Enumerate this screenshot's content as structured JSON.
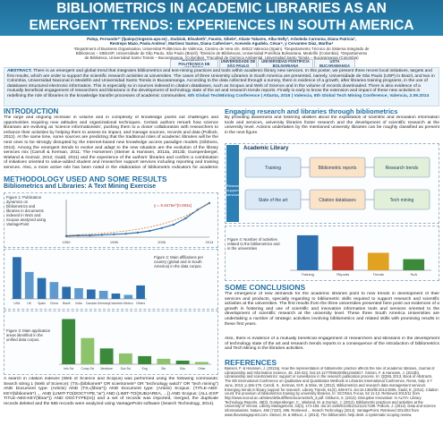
{
  "poster": {
    "title_line1": "BIBLIOMETRICS IN ACADEMIC LIBRARIES AS AN",
    "title_line2": "EMERGENT TRENDS: EXPERIENCES IN SOUTH AMERICA",
    "authors_line1": "Palop, Fernando*¹ (fpalop@ingenio.upv.es) , Dudziak, Elisabeth², Fausto, Sibele², Alzate Tabares, Alba Nelly³, Arboleda Carmona, Diana Patricia³,",
    "authors_line2": "Restrepo Mazo, Paola Andrea³, Martinez Santos, Diana Catherine⁴, Acevedo Agudelo, César⁴, y Cervantes Díaz, Martha⁴",
    "affil_line1": "¹Department of Business Organisation, Universitat Politècnica de València, Camino de Vera s/n, 46022 Valencia (Spain). ²Departamento Técnico do Sistema Integrado de",
    "affil_line2": "Bibliotecas – SIBiUSP, Universidade de São Paulo, São Paulo (Brazil). ³División de Bibliotecas, Universidad Pontificia Bolivariana, Medellín (Colombia). ⁴Departamento",
    "affil_line3": "de Biblioteca, Universidad Santo Tomás – Bucaramanga, (Colombia). *Facultad de Química Ambiental, Universidad Santo Tomás – Bucaramanga (Colombia)",
    "logos": [
      "UNIVERSITAT POLITÈCNICA DE VALÈNCIA",
      "UNIVERSIDADE DE SÃO PAULO",
      "UNIVERSIDAD PONTIFICIA BOLIVARIANA",
      "USTA BUCARAMANGA"
    ]
  },
  "abstract": {
    "label": "ABSTRACT.",
    "text": "There is an emergent and global trend that integrates bibliometrics and text-mining practices and tools within academic library new services. In this poster, we present three recent local initiatives, targets and first results, which are order to support the scientific research activities at universities. The cases of three University Libraries in South America are presented, namely, Universidade de São Paulo (USP) in Brazil, and two in Colombia, Universidad Nacional in Medellín and Universidad Santo Tomás in Bucaramanga. According to the data collected through a survey, there is evidence of a growth, after libraries training programs, in the use of databases structured electronic information. This is especially so in sources indexed in citation databases, such as Scopus and Web of Science and in the volume of records downloaded. There is also evidence of a mutually beneficial engagement of researchers and librarians in the development of technology state of the art and research trends reports. Finally is early to know the extension and impact of these new activities in redefining the role of libraries in the knowledge transfer processes of academic communities.",
    "citation": "6th Global TechMining Conference | Atlanta, 2016 | Valencia, 6th Global Tech Mining Conference, Valencia, 2.09.2014"
  },
  "intro": {
    "title": "INTRODUCTION",
    "text": "The large and ongoing increase in volume and in complexity of knowledge points out challenges and opportunities requiring new attitudes and organizational techniques. Certain authors remark how science librarians are evolving as 'science informationists', pushing them to a closer collaboration with researchers to enhance their activities by helping them to assess its impact, and manage sources, records and data (Pollock, 2012). At the same time, some sources are predicting that the traditional roles of academic libraries will be the next ones to be strongly disrupted by the Internet-based new knowledge access paradigm models (Gibbons, 2013). Among the emergent trends to evolve and adapt to the new situation are the evolution of the library services mix (Carroll & Kerman, 2011; The Horsemen (Steiner & Hanssen, 2013a, 2013b; Gumpenberger, Wieland & Gorraiz, 2012; Gadd, 2011) and the experience of the authors' libraries and confirm a combination of initiatives oriented to value-added student and researcher support services including reporting and training services. Also, a more active role has been noted in the elaboration of bibliometric indicators for academic institutions."
  },
  "methodology": {
    "title": "METHODOLOGY USED AND SOME RESULTS",
    "subtitle": "Bibliometrics and Libraries: A Text Mining Exercise",
    "fig1_caption": "Figure 1: Publication dynamics on bibliometrics and libraries in documents indexed in WoS and Scopus analyzed using VantagePoint",
    "fig2_caption": "Figure 2: Main affiliations per country (global and in South America) in the data corpus.",
    "fig3_caption": "Figure 3: Main application areas identified in the unified data corpus.",
    "search_text": "A search in citation indexes (Web of Science and Scopus) was performed using the following commands: Search string 1 (Web of Science): (TS=(bibliometr* OR scientometr* OR \"technology watch\" OR \"tech mining\") AND Document type: (Article) AND (TS=(librar*)) AND Document type: (Article) Scopus: (TITLE-ABS-KEY(bibliometr*) ... AND (LIMIT-TO(DOCTYPE,\"ar\") AND (LIMIT-TO(SUBJAREA, ...)) AND Scopus: (ALL-EXP TITLE-ABS-KEY(librar*)) AND DOCTYPE(re)) and a set of records was imported, merged, the duplicate records deleted and the 665 records were analyzed using VantagePoint software (Search Technology, 2014)."
  },
  "engaging": {
    "title": "Engaging research and libraries through bibliometrics",
    "text": "By providing awareness and fostering abilities about the exploitation of scientific and innovation information tools and services, university libraries foster research and the development of scientific research at the university level. Actions undertaken by the mentioned university libraries can be roughly classified as present in the next figure.",
    "fig4_caption": "Figure 4: Number of activities related to the bibliometrics and in the universities",
    "diagram_title": "Academic Library",
    "diagram_side_label": "Research support services",
    "diagram_nodes": [
      "Training",
      "Bibliometric reports",
      "Research trends",
      "State of the art",
      "Citation databases",
      "Tech mining"
    ]
  },
  "conclusions": {
    "title": "SOME CONCLUSIONS",
    "p1": "The emergence of new demands for the academic libraries point to new trends in development of their services and products, specially regarding to bibliometric skills required to support research and scientific activities at the universities. The first results from the three universities presented here point out evidences of a growth in fostering and use of scientific and innovation information tools and services oriented to the development of scientific research at the university level. These three South America Universities are undertaking a number of strategic activities involving bibliometrics and related skills with promising results in these first years.",
    "p2": "Also, there is evidence of a mutually beneficial engagement of researchers and librarians in the development of technology state of the art and research trends reports in a consequence of the introduction of bibliometrics and Tech Mining in the libraries activities."
  },
  "references": {
    "title": "REFERENCES",
    "text": "Bansen, F. & Hanssen, J. (2013a). How the representation of bibliometric practice affects the role of academic libraries. Journal of Librarianship and Information Science, 45, 316-322. Doi:10.1177/0961000612446817. Ästrom, F. & Hanssen, J. (2013b). Librarianship and scientometrics: support or surveillance in the research publication process. IA: QQML 2013, Book of Abstracts. The 5th International Conference on Qualitative and Quantitative Methods in Libraries International Conference, Rome, Italy. 4-7 June, 2013; p.166-175. Carroll, S., Kerman, M.R. & Wise, W. (2012). Bibliometrics and research data management services: Emerging trends in library support for research. Library Trends, 61(3), 636-674. doi:10.1353/lib.2013.0005. Gadd, E. (2011). Citation count: the provision of bibliometrics training by university libraries. In: SCONUL Focus, 52 11-13. Retrieved 2013/11 from http://www.sconul.ac.uk/sites/default/files/documents/5_3.pdf. Gibbons, S. (2013). Disruptive Innovation: In ALITA: Library Technology Reports, 49(3). Gumpenberger, C., Wieland, M. & Gorraiz, J. (2012). Bibliometric practices and activities at the University of Vienna. Library Management, 33(3), 174-183. doi:10.1108/01435121211217199. Pollock, J. (2012). Data and science informationists. Nature, 490 (7420), 395. Retrieved ... Search Technology (2014). VantagePoint. Retrieved 2014/03 from www.thevantagepoint.com. Steiner, M. & Wilson, J. (2013). The bibliometric help desk: a systematic scoping review."
  },
  "chart_data": [
    {
      "type": "line",
      "title": "Figure 1",
      "x": [
        1990,
        1992,
        1994,
        1996,
        1998,
        2000,
        2002,
        2004,
        2006,
        2008,
        2010,
        2012,
        2014
      ],
      "series": [
        {
          "values": [
            2,
            3,
            3,
            4,
            5,
            6,
            8,
            11,
            16,
            22,
            33,
            48,
            60
          ]
        }
      ],
      "trend_label": "y = 9.4675e^{0.093x}",
      "colors": [
        "#2b6fb0",
        "#e07a1f"
      ]
    },
    {
      "type": "bar",
      "title": "Figure 2",
      "categories": [
        "USA",
        "UK",
        "Spain",
        "China",
        "Brazil",
        "India",
        "Canada",
        "Germany",
        "Colombia",
        "Mexico",
        "Others"
      ],
      "values": [
        62,
        40,
        31,
        25,
        18,
        16,
        14,
        12,
        8,
        6,
        20
      ],
      "colors": [
        "#2b6fb0",
        "#5e9ad0"
      ]
    },
    {
      "type": "bar",
      "title": "Figure 3",
      "categories": [
        "Info Sci",
        "Comp Sci",
        "Medicine",
        "Soc Sci",
        "Eng",
        "Bio",
        "Edu",
        "Other"
      ],
      "values": [
        100,
        58,
        35,
        24,
        18,
        12,
        8,
        5
      ],
      "colors": [
        "#3a8a3a",
        "#8cc36b"
      ]
    },
    {
      "type": "bar",
      "title": "Figure 4",
      "categories": [
        "Training",
        "Reports",
        "Trends",
        "SoA"
      ],
      "values": [
        22,
        15,
        11,
        7
      ],
      "colors": [
        "#2b6fb0",
        "#c0392b",
        "#e0a21f",
        "#3a8a3a"
      ]
    }
  ]
}
